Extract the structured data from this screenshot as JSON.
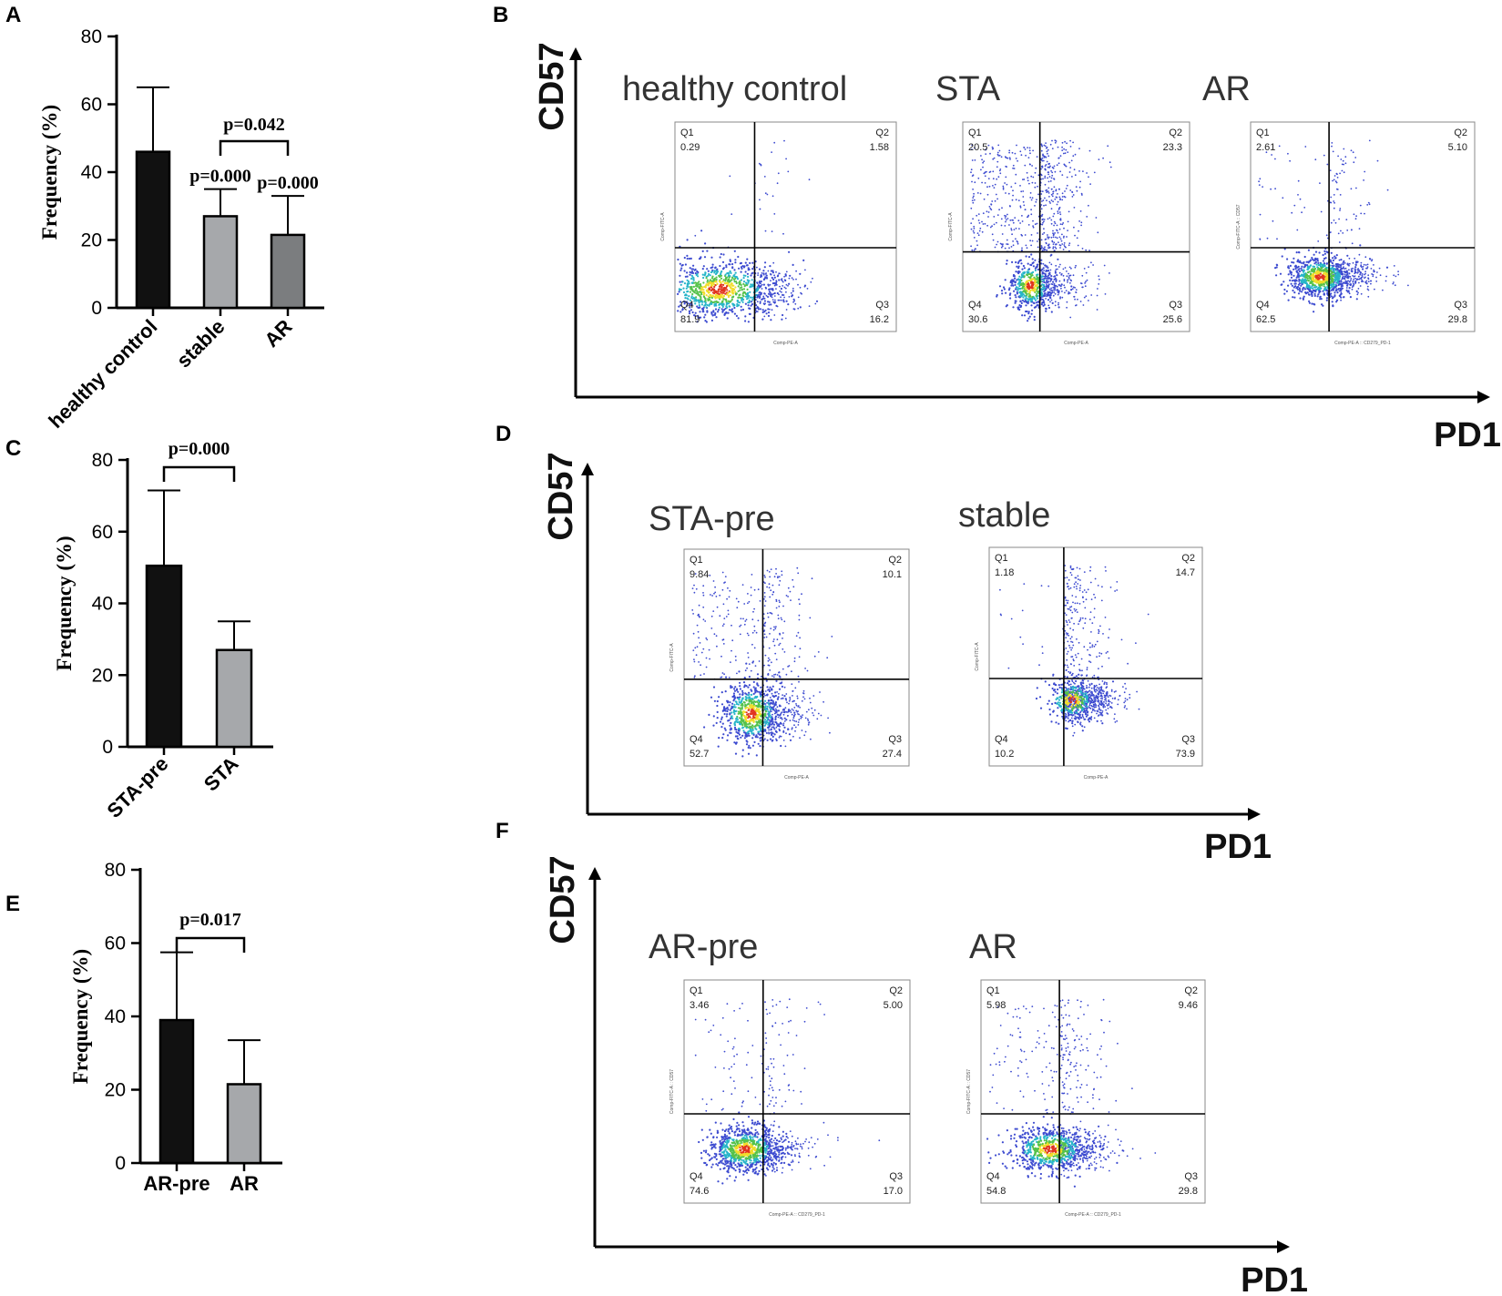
{
  "panel_letters": {
    "a": "A",
    "b": "B",
    "c": "C",
    "d": "D",
    "e": "E",
    "f": "F"
  },
  "colors": {
    "black_bar": "#111111",
    "light_bar": "#a6a8ab",
    "dark_bar": "#7b7d7f",
    "dot_blue": "#3d4bd0",
    "dot_cyan": "#27b5c9",
    "dot_green": "#55c24a",
    "dot_yellow": "#f1dd2a",
    "dot_red": "#e1341f"
  },
  "bar_charts": [
    {
      "id": "A",
      "type": "bar",
      "ylabel": "Frequency (%)",
      "ylim": [
        0,
        80
      ],
      "yticks": [
        "0",
        "20",
        "40",
        "60",
        "80"
      ],
      "categories": [
        "healthy control",
        "stable",
        "AR"
      ],
      "values": [
        46,
        27,
        21.5
      ],
      "errors": [
        19,
        8,
        11.5
      ],
      "bar_colors": [
        "#111111",
        "#a6a8ab",
        "#7b7d7f"
      ],
      "rotate_labels": true,
      "pvalues": [
        "p=0.000",
        "p=0.000"
      ],
      "bracket": {
        "label": "p=0.042",
        "from": 1,
        "to": 2
      }
    },
    {
      "id": "C",
      "type": "bar",
      "ylabel": "Frequency (%)",
      "ylim": [
        0,
        80
      ],
      "yticks": [
        "0",
        "20",
        "40",
        "60",
        "80"
      ],
      "categories": [
        "STA-pre",
        "STA"
      ],
      "values": [
        50.5,
        27
      ],
      "errors": [
        21,
        8
      ],
      "bar_colors": [
        "#111111",
        "#a6a8ab"
      ],
      "rotate_labels": true,
      "bracket": {
        "label": "p=0.000",
        "from": 0,
        "to": 1
      }
    },
    {
      "id": "E",
      "type": "bar",
      "ylabel": "Frequency (%)",
      "ylim": [
        0,
        80
      ],
      "yticks": [
        "0",
        "20",
        "40",
        "60",
        "80"
      ],
      "categories": [
        "AR-pre",
        "AR"
      ],
      "values": [
        39,
        21.5
      ],
      "errors": [
        18.5,
        12
      ],
      "bar_colors": [
        "#111111",
        "#a6a8ab"
      ],
      "rotate_labels": false,
      "bracket": {
        "label": "p=0.017",
        "from": 0,
        "to": 1
      }
    }
  ],
  "flow_panels": [
    {
      "id": "B",
      "y_axis": "CD57",
      "x_axis": "PD1",
      "plots": [
        {
          "title": "healthy control",
          "q1": "0.29",
          "q2": "1.58",
          "q3": "16.2",
          "q4": "81.9",
          "xlab": "Comp-PE-A",
          "ylab": "Comp-FITC-A",
          "quad_x": 0.36,
          "quad_y": 0.6,
          "cluster": {
            "cx": 0.2,
            "cy": 0.8,
            "sx": 0.14,
            "sy": 0.07
          }
        },
        {
          "title": "STA",
          "q1": "20.5",
          "q2": "23.3",
          "q3": "25.6",
          "q4": "30.6",
          "xlab": "Comp-PE-A",
          "ylab": "Comp-FITC-A",
          "quad_x": 0.34,
          "quad_y": 0.62,
          "cluster": {
            "cx": 0.3,
            "cy": 0.78,
            "sx": 0.05,
            "sy": 0.06
          }
        },
        {
          "title": "AR",
          "q1": "2.61",
          "q2": "5.10",
          "q3": "29.8",
          "q4": "62.5",
          "xlab": "Comp-PE-A :: CD279_PD-1",
          "ylab": "Comp-FITC-A :: CD57",
          "quad_x": 0.35,
          "quad_y": 0.6,
          "cluster": {
            "cx": 0.31,
            "cy": 0.74,
            "sx": 0.07,
            "sy": 0.05
          }
        }
      ]
    },
    {
      "id": "D",
      "y_axis": "CD57",
      "x_axis": "PD1",
      "plots": [
        {
          "title": "STA-pre",
          "q1": "9.84",
          "q2": "10.1",
          "q3": "27.4",
          "q4": "52.7",
          "xlab": "Comp-PE-A",
          "ylab": "Comp-FITC-A",
          "quad_x": 0.35,
          "quad_y": 0.6,
          "cluster": {
            "cx": 0.3,
            "cy": 0.76,
            "sx": 0.07,
            "sy": 0.07
          }
        },
        {
          "title": "stable",
          "q1": "1.18",
          "q2": "14.7",
          "q3": "73.9",
          "q4": "10.2",
          "xlab": "Comp-PE-A",
          "ylab": "Comp-FITC-A",
          "quad_x": 0.35,
          "quad_y": 0.6,
          "cluster": {
            "cx": 0.39,
            "cy": 0.7,
            "sx": 0.06,
            "sy": 0.05
          }
        }
      ]
    },
    {
      "id": "F",
      "y_axis": "CD57",
      "x_axis": "PD1",
      "plots": [
        {
          "title": "AR-pre",
          "q1": "3.46",
          "q2": "5.00",
          "q3": "17.0",
          "q4": "74.6",
          "xlab": "Comp-PE-A :: CD279_PD-1",
          "ylab": "Comp-FITC-A :: CD57",
          "quad_x": 0.35,
          "quad_y": 0.6,
          "cluster": {
            "cx": 0.27,
            "cy": 0.76,
            "sx": 0.08,
            "sy": 0.05
          }
        },
        {
          "title": "AR",
          "q1": "5.98",
          "q2": "9.46",
          "q3": "29.8",
          "q4": "54.8",
          "xlab": "Comp-PE-A :: CD279_PD-1",
          "ylab": "Comp-FITC-A :: CD57",
          "quad_x": 0.35,
          "quad_y": 0.6,
          "cluster": {
            "cx": 0.31,
            "cy": 0.76,
            "sx": 0.09,
            "sy": 0.05
          }
        }
      ]
    }
  ],
  "chart_data": [
    {
      "type": "bar",
      "title": "A",
      "categories": [
        "healthy control",
        "stable",
        "AR"
      ],
      "values": [
        46,
        27,
        21.5
      ],
      "ylabel": "Frequency (%)",
      "ylim": [
        0,
        80
      ]
    },
    {
      "type": "bar",
      "title": "C",
      "categories": [
        "STA-pre",
        "STA"
      ],
      "values": [
        50.5,
        27
      ],
      "ylabel": "Frequency (%)",
      "ylim": [
        0,
        80
      ]
    },
    {
      "type": "bar",
      "title": "E",
      "categories": [
        "AR-pre",
        "AR"
      ],
      "values": [
        39,
        21.5
      ],
      "ylabel": "Frequency (%)",
      "ylim": [
        0,
        80
      ]
    },
    {
      "type": "scatter",
      "title": "B",
      "xlabel": "PD1",
      "ylabel": "CD57",
      "series": [
        {
          "name": "healthy control",
          "quadrants": {
            "Q1": 0.29,
            "Q2": 1.58,
            "Q3": 16.2,
            "Q4": 81.9
          }
        },
        {
          "name": "STA",
          "quadrants": {
            "Q1": 20.5,
            "Q2": 23.3,
            "Q3": 25.6,
            "Q4": 30.6
          }
        },
        {
          "name": "AR",
          "quadrants": {
            "Q1": 2.61,
            "Q2": 5.1,
            "Q3": 29.8,
            "Q4": 62.5
          }
        }
      ]
    },
    {
      "type": "scatter",
      "title": "D",
      "xlabel": "PD1",
      "ylabel": "CD57",
      "series": [
        {
          "name": "STA-pre",
          "quadrants": {
            "Q1": 9.84,
            "Q2": 10.1,
            "Q3": 27.4,
            "Q4": 52.7
          }
        },
        {
          "name": "stable",
          "quadrants": {
            "Q1": 1.18,
            "Q2": 14.7,
            "Q3": 73.9,
            "Q4": 10.2
          }
        }
      ]
    },
    {
      "type": "scatter",
      "title": "F",
      "xlabel": "PD1",
      "ylabel": "CD57",
      "series": [
        {
          "name": "AR-pre",
          "quadrants": {
            "Q1": 3.46,
            "Q2": 5.0,
            "Q3": 17.0,
            "Q4": 74.6
          }
        },
        {
          "name": "AR",
          "quadrants": {
            "Q1": 5.98,
            "Q2": 9.46,
            "Q3": 29.8,
            "Q4": 54.8
          }
        }
      ]
    }
  ]
}
